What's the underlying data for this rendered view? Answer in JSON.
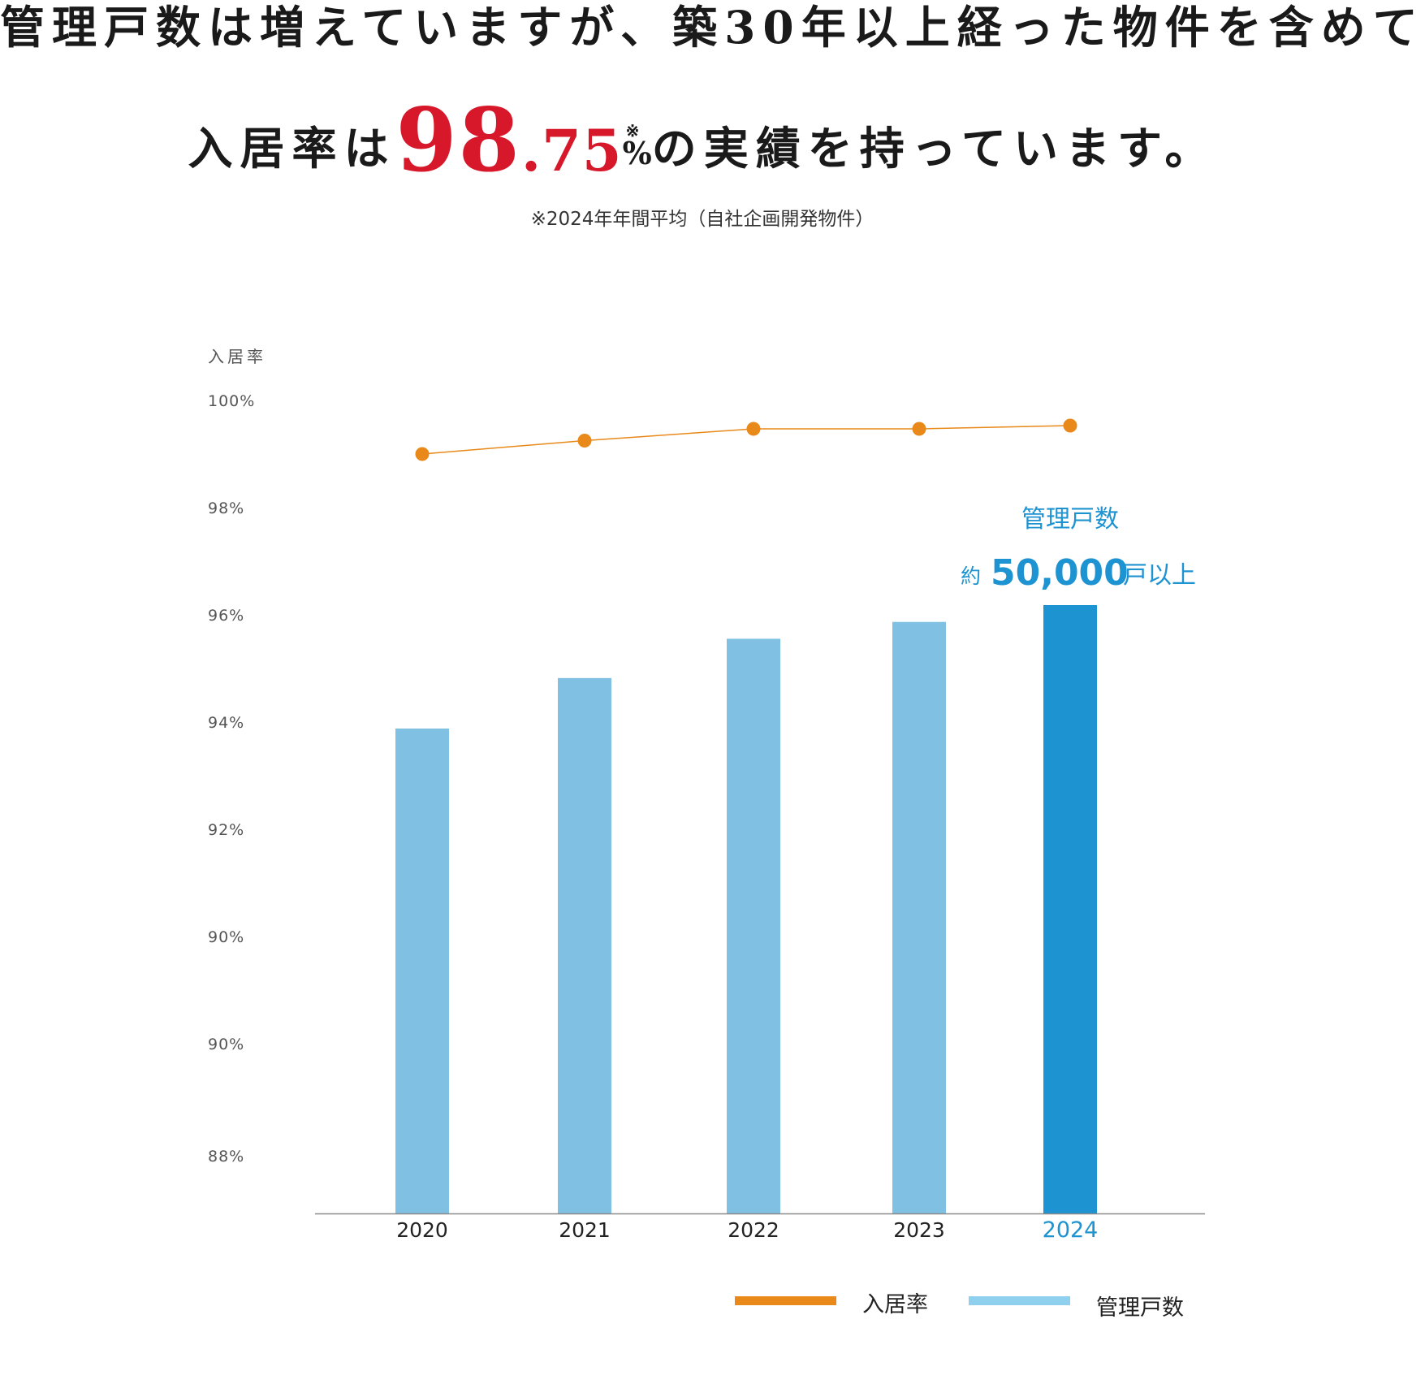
{
  "headline": {
    "line1": "管理戸数は増えていますが、築30年以上経った物件を含めて",
    "line2_prefix": "入居率は",
    "rate_int": "98",
    "rate_decimal": ".75",
    "rate_mark": "※",
    "rate_unit": "%",
    "line2_suffix": "の実績を持っています。"
  },
  "footnote": "※2024年年間平均（自社企画開発物件）",
  "colors": {
    "line": "#e8891a",
    "bar": "#80c1e3",
    "bar_highlight": "#1d93d2",
    "highlight_text": "#1d93d2",
    "rate_red": "#d7182a"
  },
  "chart_data": {
    "type": "bar+line",
    "categories": [
      "2020",
      "2021",
      "2022",
      "2023",
      "2024"
    ],
    "y_axis_title": "入居率",
    "y_tick_labels": [
      "100%",
      "98%",
      "96%",
      "94%",
      "92%",
      "90%",
      "90%",
      "88%"
    ],
    "series": [
      {
        "name": "入居率",
        "type": "line",
        "axis": "left",
        "unit": "%",
        "values": [
          99.0,
          99.25,
          99.47,
          99.47,
          99.53
        ]
      },
      {
        "name": "管理戸数",
        "type": "bar",
        "axis": "secondary (unlabeled)",
        "values": [
          39000,
          43500,
          47000,
          48500,
          50000
        ]
      }
    ],
    "highlight_category": "2024",
    "annotation": {
      "title": "管理戸数",
      "prefix": "約",
      "value": "50,000",
      "suffix": "戸以上"
    },
    "grid": false,
    "legend_position": "bottom-right"
  },
  "legend": [
    {
      "label": "入居率",
      "color": "#e8891a"
    },
    {
      "label": "管理戸数",
      "color": "#8fd0ef"
    }
  ]
}
